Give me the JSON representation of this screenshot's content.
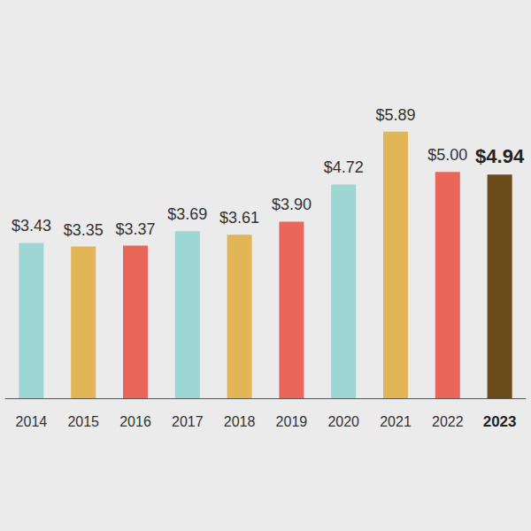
{
  "chart_data": {
    "type": "bar",
    "categories": [
      "2014",
      "2015",
      "2016",
      "2017",
      "2018",
      "2019",
      "2020",
      "2021",
      "2022",
      "2023"
    ],
    "values": [
      3.43,
      3.35,
      3.37,
      3.69,
      3.61,
      3.9,
      4.72,
      5.89,
      5.0,
      4.94
    ],
    "value_labels": [
      "$3.43",
      "$3.35",
      "$3.37",
      "$3.69",
      "$3.61",
      "$3.90",
      "$4.72",
      "$5.89",
      "$5.00",
      "$4.94"
    ],
    "colors": [
      "#9dd6d3",
      "#e2b556",
      "#e8675a",
      "#9dd6d3",
      "#e2b556",
      "#e8675a",
      "#9dd6d3",
      "#e2b556",
      "#e8675a",
      "#6b4a1c"
    ],
    "data_labels": true,
    "tick_labels": "x",
    "grid": false
  }
}
